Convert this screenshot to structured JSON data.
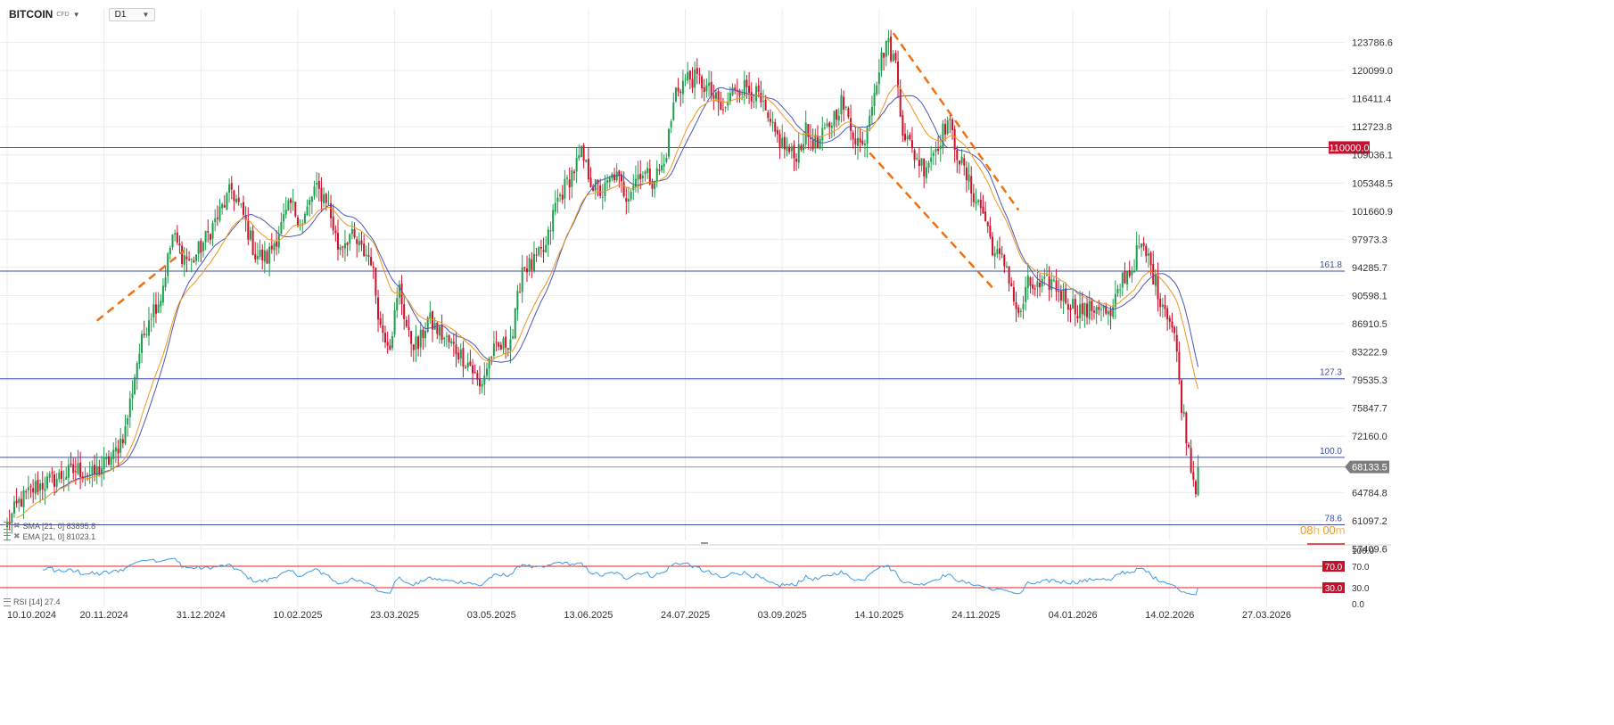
{
  "header": {
    "symbol": "BITCOIN",
    "symbol_sub": "CFD",
    "timeframe": "D1"
  },
  "indicators": {
    "sma_label": "SMA [21, 0] 83895.8",
    "ema_label": "EMA [21, 0] 81023.1",
    "rsi_label": "RSI [14] 27.4"
  },
  "timer": {
    "hours": "08",
    "hours_unit": "h",
    "minutes": "00",
    "minutes_unit": "m"
  },
  "colors": {
    "up": "#1f9e4e",
    "down": "#d0102a",
    "sma": "#4b57b8",
    "ema": "#f0961e",
    "hline_red": "#e02020",
    "fib": "#3a4da0",
    "rsi": "#3d9be0",
    "trend": "#f07010",
    "grid": "#ececec"
  },
  "chart_data": {
    "type": "candlestick",
    "symbol": "BITCOIN",
    "timeframe": "D1",
    "ylim": [
      57409.6,
      125000
    ],
    "y_ticks": [
      "123786.6",
      "120099.0",
      "116411.4",
      "112723.8",
      "109036.1",
      "105348.5",
      "101660.9",
      "97973.3",
      "94285.7",
      "90598.1",
      "86910.5",
      "83222.9",
      "79535.3",
      "75847.7",
      "72160.0",
      "64784.8",
      "61097.2",
      "57409.6"
    ],
    "x_ticks": [
      "10.10.2024",
      "20.11.2024",
      "31.12.2024",
      "10.02.2025",
      "23.03.2025",
      "03.05.2025",
      "13.06.2025",
      "24.07.2025",
      "03.09.2025",
      "14.10.2025",
      "24.11.2025",
      "04.01.2026",
      "14.02.2026",
      "27.03.2026"
    ],
    "price_path": [
      [
        0,
        60500
      ],
      [
        5,
        63500
      ],
      [
        12,
        65500
      ],
      [
        22,
        66800
      ],
      [
        30,
        67800
      ],
      [
        36,
        67000
      ],
      [
        45,
        69500
      ],
      [
        50,
        73000
      ],
      [
        55,
        82000
      ],
      [
        60,
        88000
      ],
      [
        65,
        90500
      ],
      [
        70,
        98500
      ],
      [
        74,
        96000
      ],
      [
        78,
        95000
      ],
      [
        84,
        98000
      ],
      [
        90,
        101500
      ],
      [
        95,
        104500
      ],
      [
        100,
        101000
      ],
      [
        105,
        96000
      ],
      [
        110,
        95500
      ],
      [
        115,
        99000
      ],
      [
        120,
        102500
      ],
      [
        125,
        100000
      ],
      [
        130,
        104500
      ],
      [
        135,
        103500
      ],
      [
        140,
        97000
      ],
      [
        145,
        98500
      ],
      [
        150,
        96500
      ],
      [
        154,
        95500
      ],
      [
        158,
        86500
      ],
      [
        162,
        84500
      ],
      [
        166,
        91500
      ],
      [
        170,
        85000
      ],
      [
        174,
        84000
      ],
      [
        178,
        87500
      ],
      [
        185,
        85000
      ],
      [
        190,
        83500
      ],
      [
        196,
        81500
      ],
      [
        200,
        78500
      ],
      [
        205,
        83000
      ],
      [
        210,
        84000
      ],
      [
        214,
        85500
      ],
      [
        218,
        94500
      ],
      [
        222,
        94500
      ],
      [
        228,
        96800
      ],
      [
        232,
        102500
      ],
      [
        238,
        106000
      ],
      [
        243,
        109000
      ],
      [
        248,
        105000
      ],
      [
        252,
        104000
      ],
      [
        257,
        106500
      ],
      [
        262,
        103800
      ],
      [
        268,
        107000
      ],
      [
        273,
        105800
      ],
      [
        278,
        107700
      ],
      [
        283,
        117500
      ],
      [
        288,
        119200
      ],
      [
        293,
        118800
      ],
      [
        298,
        117000
      ],
      [
        303,
        114500
      ],
      [
        308,
        118000
      ],
      [
        313,
        117900
      ],
      [
        318,
        116500
      ],
      [
        323,
        112500
      ],
      [
        328,
        110500
      ],
      [
        333,
        108700
      ],
      [
        338,
        112000
      ],
      [
        343,
        110200
      ],
      [
        348,
        113000
      ],
      [
        353,
        116000
      ],
      [
        358,
        112000
      ],
      [
        362,
        110000
      ],
      [
        367,
        118000
      ],
      [
        372,
        124000
      ],
      [
        376,
        121000
      ],
      [
        379,
        112500
      ],
      [
        383,
        109500
      ],
      [
        388,
        107500
      ],
      [
        393,
        110000
      ],
      [
        398,
        113500
      ],
      [
        403,
        108500
      ],
      [
        408,
        104500
      ],
      [
        413,
        101500
      ],
      [
        418,
        96000
      ],
      [
        423,
        94500
      ],
      [
        428,
        87500
      ],
      [
        432,
        92000
      ],
      [
        437,
        91500
      ],
      [
        442,
        92500
      ],
      [
        447,
        90500
      ],
      [
        452,
        89000
      ],
      [
        457,
        88500
      ],
      [
        462,
        89500
      ],
      [
        467,
        87500
      ],
      [
        472,
        93000
      ],
      [
        476,
        94000
      ],
      [
        479,
        97000
      ],
      [
        483,
        95500
      ],
      [
        487,
        91000
      ],
      [
        491,
        88500
      ],
      [
        494,
        85500
      ],
      [
        497,
        76500
      ],
      [
        500,
        70500
      ],
      [
        503,
        65000
      ],
      [
        504,
        68133.5
      ]
    ],
    "last_price": 68133.5,
    "last_index": 504,
    "x_tick_spacing_bars": 41,
    "overlays": {
      "sma_period": 21,
      "sma_last": 83895.8,
      "ema_period": 21,
      "ema_last": 81023.1
    },
    "horizontal_levels": [
      {
        "value": 110000.0,
        "label": "110000.0",
        "style": "red-solid"
      }
    ],
    "fib_levels": [
      {
        "label": "161.8",
        "value": 93800
      },
      {
        "label": "127.3",
        "value": 79700
      },
      {
        "label": "100.0",
        "value": 69400
      },
      {
        "label": "78.6",
        "value": 60550
      }
    ],
    "trendlines": [
      {
        "from": [
          38,
          87300
        ],
        "to": [
          75,
          96500
        ]
      },
      {
        "from": [
          375,
          125000
        ],
        "to": [
          428,
          101800
        ]
      },
      {
        "from": [
          365,
          109300
        ],
        "to": [
          418,
          91300
        ]
      }
    ],
    "rsi": {
      "period": 14,
      "last": 27.4,
      "upper": 70.0,
      "lower": 30.0,
      "axis_ticks": [
        "100.0",
        "70.0",
        "30.0",
        "0.0"
      ],
      "upper_label": "70.0",
      "lower_label": "30.0"
    }
  }
}
